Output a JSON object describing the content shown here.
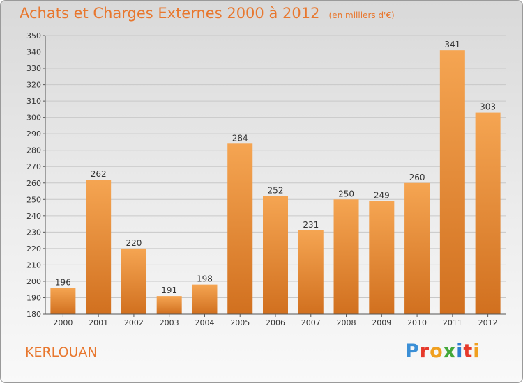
{
  "header": {
    "title": "Achats et Charges Externes 2000 à 2012",
    "unit_note": "(en milliers d'€)"
  },
  "footer": {
    "commune": "KERLOUAN",
    "logo": "Proxiti"
  },
  "colors": {
    "accent": "#e8772e",
    "bar_light": "#f5a552",
    "bar_dark": "#d1701f",
    "gridline": "#c8c8c8"
  },
  "chart_data": {
    "type": "bar",
    "title": "Achats et Charges Externes 2000 à 2012",
    "subtitle": "(en milliers d'€)",
    "xlabel": "",
    "ylabel": "",
    "categories": [
      "2000",
      "2001",
      "2002",
      "2003",
      "2004",
      "2005",
      "2006",
      "2007",
      "2008",
      "2009",
      "2010",
      "2011",
      "2012"
    ],
    "values": [
      196,
      262,
      220,
      191,
      198,
      284,
      252,
      231,
      250,
      249,
      260,
      341,
      303
    ],
    "ylim": [
      180,
      350
    ],
    "ytick_step": 10,
    "grid": true,
    "legend": "none"
  }
}
